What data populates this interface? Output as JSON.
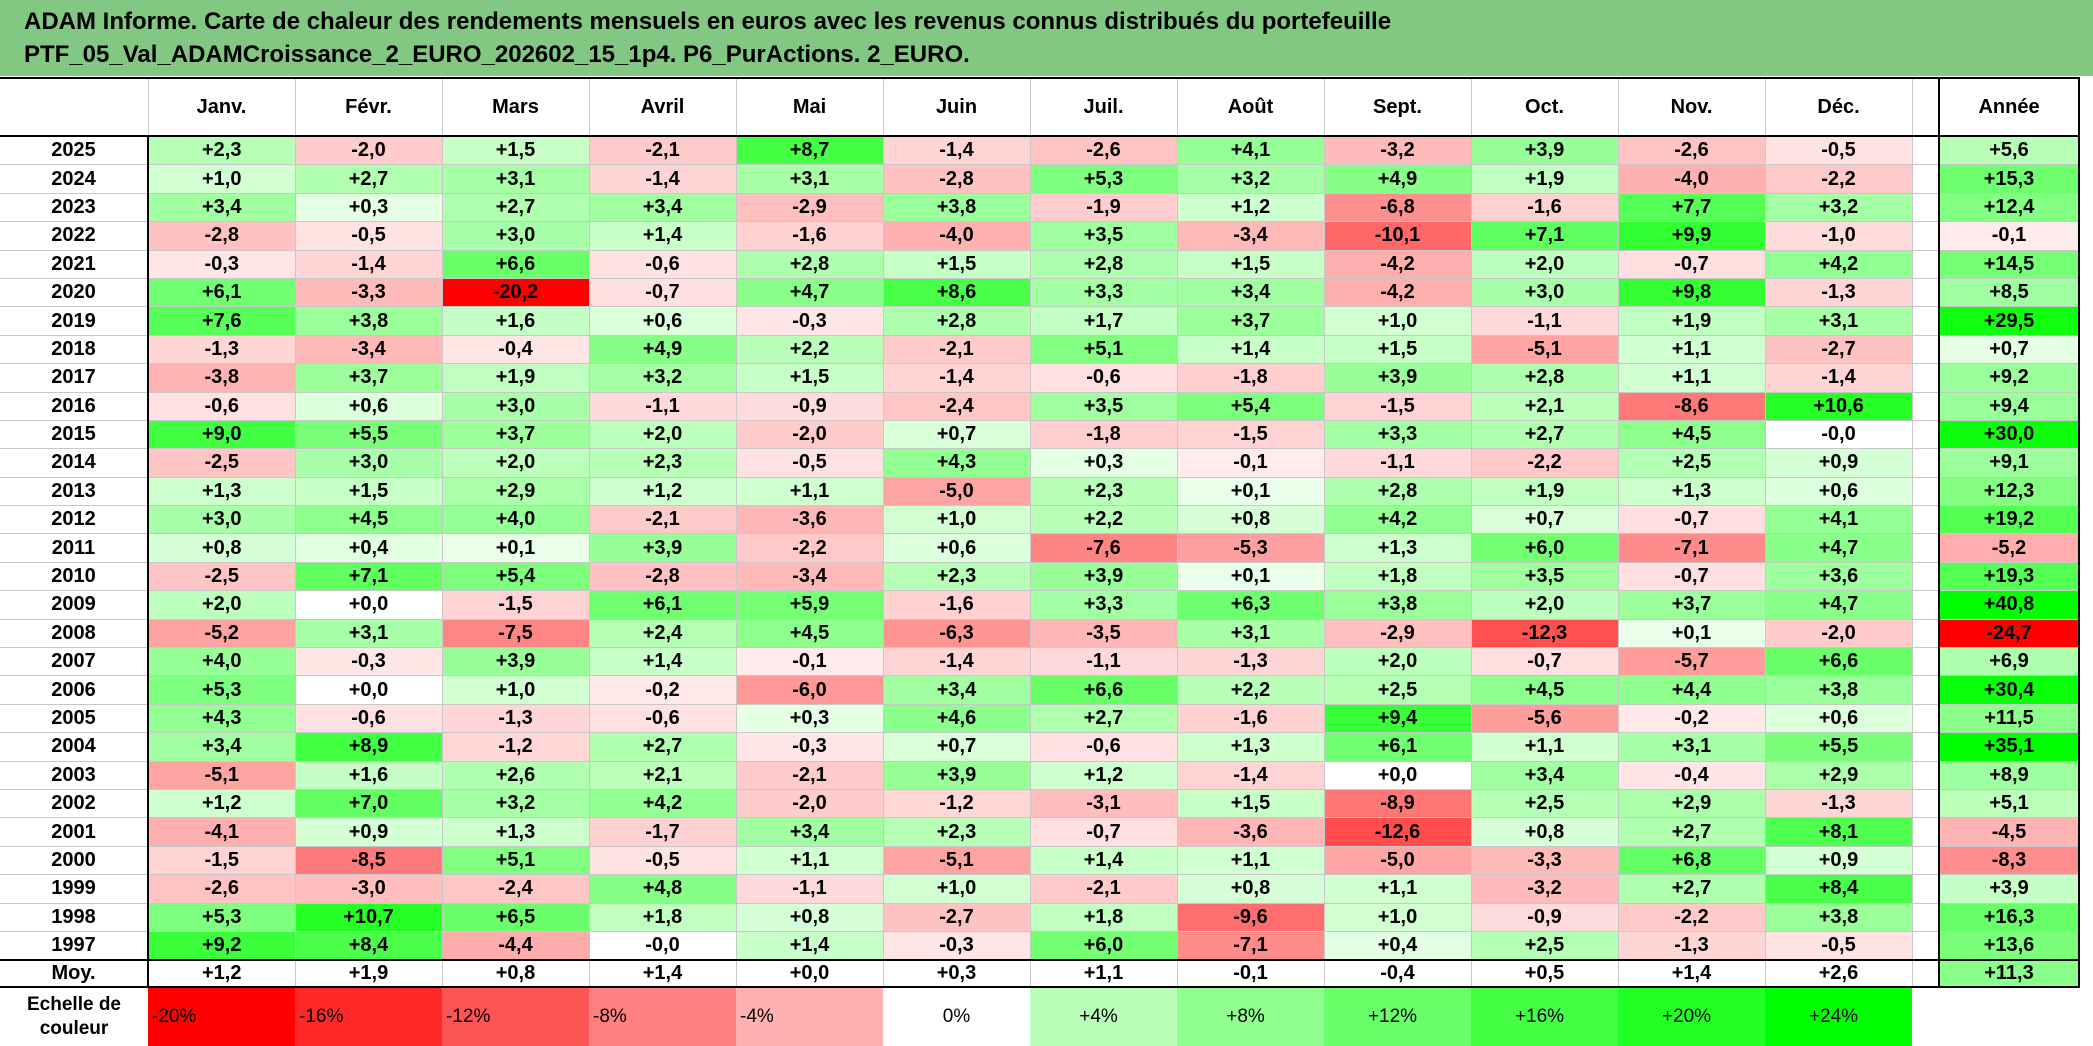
{
  "title": {
    "line1": "ADAM Informe. Carte de chaleur des rendements mensuels en euros avec les revenus connus distribués du portefeuille",
    "line2": "PTF_05_Val_ADAMCroissance_2_EURO_202602_15_1p4. P6_PurActions. 2_EURO."
  },
  "chart_data": {
    "type": "heatmap",
    "title": "Carte de chaleur des rendements mensuels en euros",
    "columns": [
      "Janv.",
      "Févr.",
      "Mars",
      "Avril",
      "Mai",
      "Juin",
      "Juil.",
      "Août",
      "Sept.",
      "Oct.",
      "Nov.",
      "Déc."
    ],
    "year_header": "Année",
    "rows": [
      {
        "year": "2025",
        "months": [
          "+2,3",
          "-2,0",
          "+1,5",
          "-2,1",
          "+8,7",
          "-1,4",
          "-2,6",
          "+4,1",
          "-3,2",
          "+3,9",
          "-2,6",
          "-0,5"
        ],
        "annual": "+5,6"
      },
      {
        "year": "2024",
        "months": [
          "+1,0",
          "+2,7",
          "+3,1",
          "-1,4",
          "+3,1",
          "-2,8",
          "+5,3",
          "+3,2",
          "+4,9",
          "+1,9",
          "-4,0",
          "-2,2"
        ],
        "annual": "+15,3"
      },
      {
        "year": "2023",
        "months": [
          "+3,4",
          "+0,3",
          "+2,7",
          "+3,4",
          "-2,9",
          "+3,8",
          "-1,9",
          "+1,2",
          "-6,8",
          "-1,6",
          "+7,7",
          "+3,2"
        ],
        "annual": "+12,4"
      },
      {
        "year": "2022",
        "months": [
          "-2,8",
          "-0,5",
          "+3,0",
          "+1,4",
          "-1,6",
          "-4,0",
          "+3,5",
          "-3,4",
          "-10,1",
          "+7,1",
          "+9,9",
          "-1,0"
        ],
        "annual": "-0,1"
      },
      {
        "year": "2021",
        "months": [
          "-0,3",
          "-1,4",
          "+6,6",
          "-0,6",
          "+2,8",
          "+1,5",
          "+2,8",
          "+1,5",
          "-4,2",
          "+2,0",
          "-0,7",
          "+4,2"
        ],
        "annual": "+14,5"
      },
      {
        "year": "2020",
        "months": [
          "+6,1",
          "-3,3",
          "-20,2",
          "-0,7",
          "+4,7",
          "+8,6",
          "+3,3",
          "+3,4",
          "-4,2",
          "+3,0",
          "+9,8",
          "-1,3"
        ],
        "annual": "+8,5"
      },
      {
        "year": "2019",
        "months": [
          "+7,6",
          "+3,8",
          "+1,6",
          "+0,6",
          "-0,3",
          "+2,8",
          "+1,7",
          "+3,7",
          "+1,0",
          "-1,1",
          "+1,9",
          "+3,1"
        ],
        "annual": "+29,5"
      },
      {
        "year": "2018",
        "months": [
          "-1,3",
          "-3,4",
          "-0,4",
          "+4,9",
          "+2,2",
          "-2,1",
          "+5,1",
          "+1,4",
          "+1,5",
          "-5,1",
          "+1,1",
          "-2,7"
        ],
        "annual": "+0,7"
      },
      {
        "year": "2017",
        "months": [
          "-3,8",
          "+3,7",
          "+1,9",
          "+3,2",
          "+1,5",
          "-1,4",
          "-0,6",
          "-1,8",
          "+3,9",
          "+2,8",
          "+1,1",
          "-1,4"
        ],
        "annual": "+9,2"
      },
      {
        "year": "2016",
        "months": [
          "-0,6",
          "+0,6",
          "+3,0",
          "-1,1",
          "-0,9",
          "-2,4",
          "+3,5",
          "+5,4",
          "-1,5",
          "+2,1",
          "-8,6",
          "+10,6"
        ],
        "annual": "+9,4"
      },
      {
        "year": "2015",
        "months": [
          "+9,0",
          "+5,5",
          "+3,7",
          "+2,0",
          "-2,0",
          "+0,7",
          "-1,8",
          "-1,5",
          "+3,3",
          "+2,7",
          "+4,5",
          "-0,0"
        ],
        "annual": "+30,0"
      },
      {
        "year": "2014",
        "months": [
          "-2,5",
          "+3,0",
          "+2,0",
          "+2,3",
          "-0,5",
          "+4,3",
          "+0,3",
          "-0,1",
          "-1,1",
          "-2,2",
          "+2,5",
          "+0,9"
        ],
        "annual": "+9,1"
      },
      {
        "year": "2013",
        "months": [
          "+1,3",
          "+1,5",
          "+2,9",
          "+1,2",
          "+1,1",
          "-5,0",
          "+2,3",
          "+0,1",
          "+2,8",
          "+1,9",
          "+1,3",
          "+0,6"
        ],
        "annual": "+12,3"
      },
      {
        "year": "2012",
        "months": [
          "+3,0",
          "+4,5",
          "+4,0",
          "-2,1",
          "-3,6",
          "+1,0",
          "+2,2",
          "+0,8",
          "+4,2",
          "+0,7",
          "-0,7",
          "+4,1"
        ],
        "annual": "+19,2"
      },
      {
        "year": "2011",
        "months": [
          "+0,8",
          "+0,4",
          "+0,1",
          "+3,9",
          "-2,2",
          "+0,6",
          "-7,6",
          "-5,3",
          "+1,3",
          "+6,0",
          "-7,1",
          "+4,7"
        ],
        "annual": "-5,2"
      },
      {
        "year": "2010",
        "months": [
          "-2,5",
          "+7,1",
          "+5,4",
          "-2,8",
          "-3,4",
          "+2,3",
          "+3,9",
          "+0,1",
          "+1,8",
          "+3,5",
          "-0,7",
          "+3,6"
        ],
        "annual": "+19,3"
      },
      {
        "year": "2009",
        "months": [
          "+2,0",
          "+0,0",
          "-1,5",
          "+6,1",
          "+5,9",
          "-1,6",
          "+3,3",
          "+6,3",
          "+3,8",
          "+2,0",
          "+3,7",
          "+4,7"
        ],
        "annual": "+40,8"
      },
      {
        "year": "2008",
        "months": [
          "-5,2",
          "+3,1",
          "-7,5",
          "+2,4",
          "+4,5",
          "-6,3",
          "-3,5",
          "+3,1",
          "-2,9",
          "-12,3",
          "+0,1",
          "-2,0"
        ],
        "annual": "-24,7"
      },
      {
        "year": "2007",
        "months": [
          "+4,0",
          "-0,3",
          "+3,9",
          "+1,4",
          "-0,1",
          "-1,4",
          "-1,1",
          "-1,3",
          "+2,0",
          "-0,7",
          "-5,7",
          "+6,6"
        ],
        "annual": "+6,9"
      },
      {
        "year": "2006",
        "months": [
          "+5,3",
          "+0,0",
          "+1,0",
          "-0,2",
          "-6,0",
          "+3,4",
          "+6,6",
          "+2,2",
          "+2,5",
          "+4,5",
          "+4,4",
          "+3,8"
        ],
        "annual": "+30,4"
      },
      {
        "year": "2005",
        "months": [
          "+4,3",
          "-0,6",
          "-1,3",
          "-0,6",
          "+0,3",
          "+4,6",
          "+2,7",
          "-1,6",
          "+9,4",
          "-5,6",
          "-0,2",
          "+0,6"
        ],
        "annual": "+11,5"
      },
      {
        "year": "2004",
        "months": [
          "+3,4",
          "+8,9",
          "-1,2",
          "+2,7",
          "-0,3",
          "+0,7",
          "-0,6",
          "+1,3",
          "+6,1",
          "+1,1",
          "+3,1",
          "+5,5"
        ],
        "annual": "+35,1"
      },
      {
        "year": "2003",
        "months": [
          "-5,1",
          "+1,6",
          "+2,6",
          "+2,1",
          "-2,1",
          "+3,9",
          "+1,2",
          "-1,4",
          "+0,0",
          "+3,4",
          "-0,4",
          "+2,9"
        ],
        "annual": "+8,9"
      },
      {
        "year": "2002",
        "months": [
          "+1,2",
          "+7,0",
          "+3,2",
          "+4,2",
          "-2,0",
          "-1,2",
          "-3,1",
          "+1,5",
          "-8,9",
          "+2,5",
          "+2,9",
          "-1,3"
        ],
        "annual": "+5,1"
      },
      {
        "year": "2001",
        "months": [
          "-4,1",
          "+0,9",
          "+1,3",
          "-1,7",
          "+3,4",
          "+2,3",
          "-0,7",
          "-3,6",
          "-12,6",
          "+0,8",
          "+2,7",
          "+8,1"
        ],
        "annual": "-4,5"
      },
      {
        "year": "2000",
        "months": [
          "-1,5",
          "-8,5",
          "+5,1",
          "-0,5",
          "+1,1",
          "-5,1",
          "+1,4",
          "+1,1",
          "-5,0",
          "-3,3",
          "+6,8",
          "+0,9"
        ],
        "annual": "-8,3"
      },
      {
        "year": "1999",
        "months": [
          "-2,6",
          "-3,0",
          "-2,4",
          "+4,8",
          "-1,1",
          "+1,0",
          "-2,1",
          "+0,8",
          "+1,1",
          "-3,2",
          "+2,7",
          "+8,4"
        ],
        "annual": "+3,9"
      },
      {
        "year": "1998",
        "months": [
          "+5,3",
          "+10,7",
          "+6,5",
          "+1,8",
          "+0,8",
          "-2,7",
          "+1,8",
          "-9,6",
          "+1,0",
          "-0,9",
          "-2,2",
          "+3,8"
        ],
        "annual": "+16,3"
      },
      {
        "year": "1997",
        "months": [
          "+9,2",
          "+8,4",
          "-4,4",
          "-0,0",
          "+1,4",
          "-0,3",
          "+6,0",
          "-7,1",
          "+0,4",
          "+2,5",
          "-1,3",
          "-0,5"
        ],
        "annual": "+13,6"
      }
    ],
    "average": {
      "label": "Moy.",
      "months": [
        "+1,2",
        "+1,9",
        "+0,8",
        "+1,4",
        "+0,0",
        "+0,3",
        "+1,1",
        "-0,1",
        "-0,4",
        "+0,5",
        "+1,4",
        "+2,6"
      ],
      "annual": "+11,3"
    },
    "scale": {
      "label": "Echelle de couleur",
      "items": [
        {
          "label": "-20%",
          "value": -20
        },
        {
          "label": "-16%",
          "value": -16
        },
        {
          "label": "-12%",
          "value": -12
        },
        {
          "label": "-8%",
          "value": -8
        },
        {
          "label": "-4%",
          "value": -4
        },
        {
          "label": "0%",
          "value": 0
        },
        {
          "label": "+4%",
          "value": 4
        },
        {
          "label": "+8%",
          "value": 8
        },
        {
          "label": "+12%",
          "value": 12
        },
        {
          "label": "+16%",
          "value": 16
        },
        {
          "label": "+20%",
          "value": 20
        },
        {
          "label": "+24%",
          "value": 24
        }
      ]
    },
    "colors": {
      "title_bg": "#82c883",
      "negative_max": "#ff0000",
      "neutral": "#ffffff",
      "positive_max": "#00ff00"
    }
  }
}
